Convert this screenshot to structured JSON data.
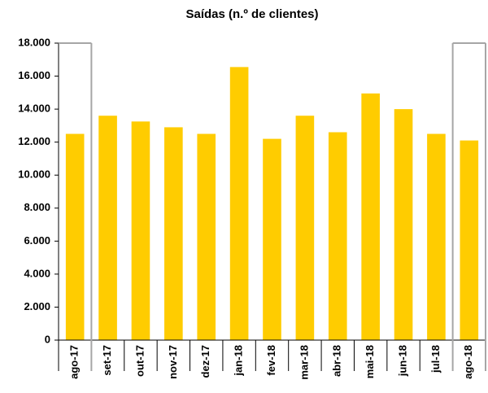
{
  "chart_data": {
    "type": "bar",
    "title": "Saídas (n.º de clientes)",
    "categories": [
      "ago-17",
      "set-17",
      "out-17",
      "nov-17",
      "dez-17",
      "jan-18",
      "fev-18",
      "mar-18",
      "abr-18",
      "mai-18",
      "jun-18",
      "jul-18",
      "ago-18"
    ],
    "values": [
      12500,
      13600,
      13250,
      12900,
      12500,
      16550,
      12200,
      13600,
      12600,
      14950,
      14000,
      12500,
      12100
    ],
    "color": "#ffcc00",
    "ylim": [
      0,
      18000
    ],
    "yticks": [
      0,
      {
        "value": 2000,
        "label": "2.000"
      },
      {
        "value": 4000,
        "label": "4.000"
      },
      {
        "value": 6000,
        "label": "6.000"
      },
      {
        "value": 8000,
        "label": "8.000"
      },
      {
        "value": 10000,
        "label": "10.000"
      },
      {
        "value": 12000,
        "label": "12.000"
      },
      {
        "value": 14000,
        "label": "14.000"
      },
      {
        "value": 16000,
        "label": "16.000"
      },
      {
        "value": 18000,
        "label": "18.000"
      }
    ],
    "grid": false
  }
}
